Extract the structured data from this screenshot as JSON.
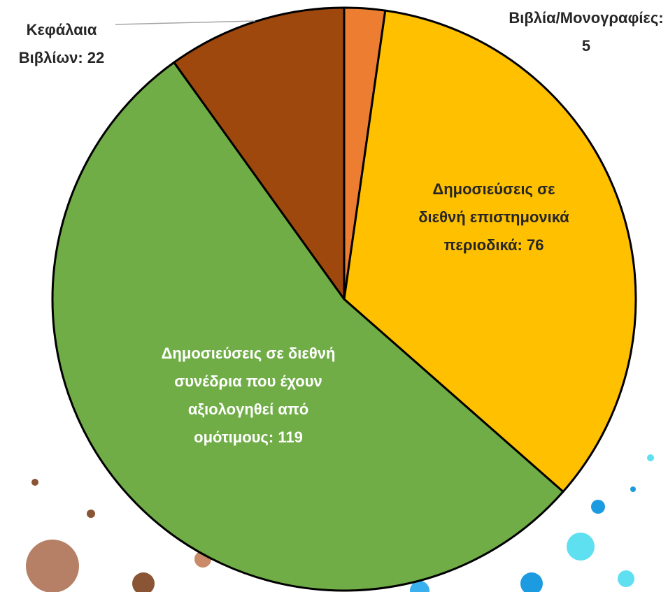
{
  "chart_data": {
    "type": "pie",
    "values": [
      5,
      76,
      119,
      22
    ],
    "value_labels": [
      "Βιβλία/Μονογραφίες: 5",
      "Δημοσιεύσεις σε διεθνή επιστημονικά περιοδικά: 76",
      "Δημοσιεύσεις σε διεθνή συνέδρια που έχουν αξιολογηθεί από ομότιμους: 119",
      "Κεφάλαια Βιβλίων: 22"
    ],
    "colors": [
      "#ED7D31",
      "#FFC000",
      "#70AD47",
      "#9E480E"
    ]
  }
}
